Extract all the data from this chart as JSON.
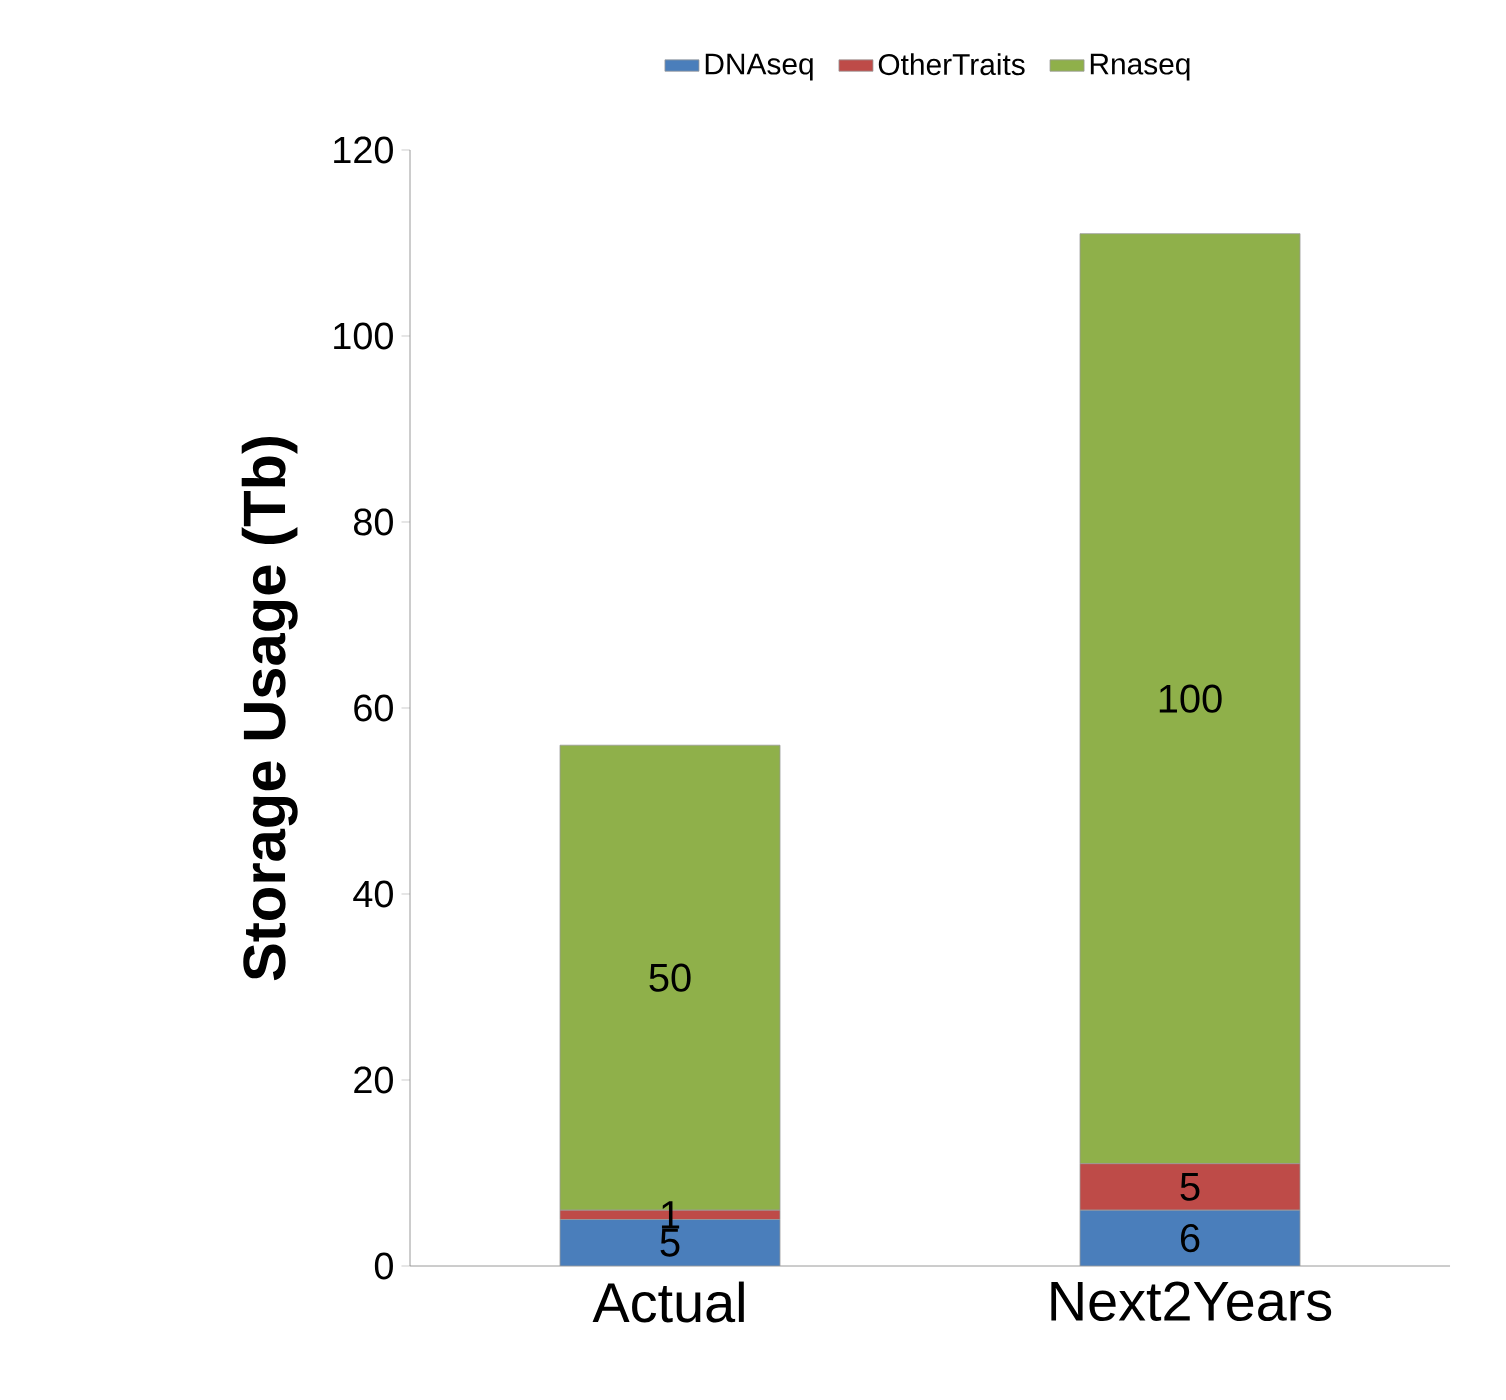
{
  "chart_data": {
    "type": "bar",
    "stacked": true,
    "ylabel": "Storage Usage (Tb)",
    "categories": [
      "Actual",
      "Next2Years"
    ],
    "series": [
      {
        "name": "DNAseq",
        "color": "#4a7ebb",
        "values": [
          5,
          6
        ]
      },
      {
        "name": "OtherTraits",
        "color": "#be4b48",
        "values": [
          1,
          5
        ]
      },
      {
        "name": "Rnaseq",
        "color": "#8fb04a",
        "values": [
          50,
          100
        ]
      }
    ],
    "ylim": [
      0,
      120
    ],
    "yticks": [
      0,
      20,
      40,
      60,
      80,
      100,
      120
    ],
    "data_labels": true,
    "legend": "top",
    "grid": false
  }
}
